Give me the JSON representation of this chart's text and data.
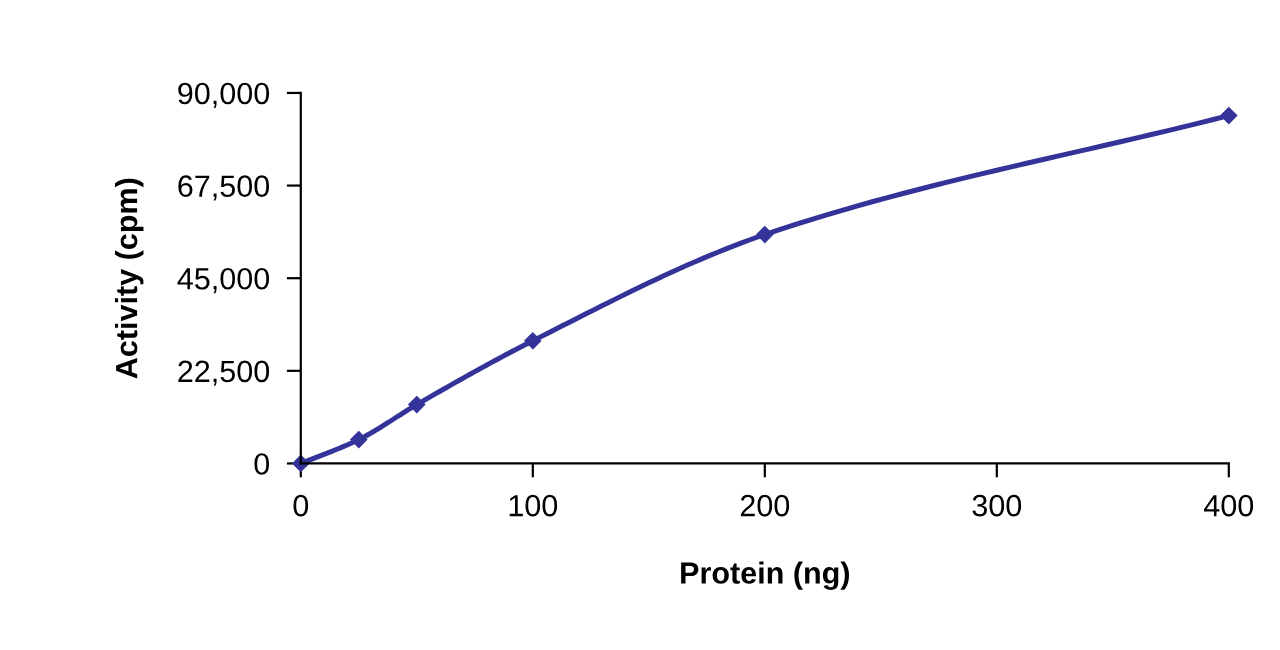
{
  "chart_data": {
    "type": "line",
    "xlabel": "Protein (ng)",
    "ylabel": "Activity (cpm)",
    "x": [
      0,
      25,
      50,
      100,
      200,
      400
    ],
    "series": [
      {
        "color": "#333399",
        "values": [
          0,
          5800,
          14300,
          29800,
          55600,
          84500
        ]
      }
    ],
    "xlim": [
      0,
      400
    ],
    "xticks": [
      0,
      100,
      200,
      300,
      400
    ],
    "ylim": [
      0,
      90000
    ],
    "yticks": [
      {
        "value": 0,
        "label": "0"
      },
      {
        "value": 22500,
        "label": "22,500"
      },
      {
        "value": 45000,
        "label": "45,000"
      },
      {
        "value": 67500,
        "label": "67,500"
      },
      {
        "value": 90000,
        "label": "90,000"
      }
    ],
    "marker": "diamond",
    "line_style": "solid",
    "grid": false
  }
}
